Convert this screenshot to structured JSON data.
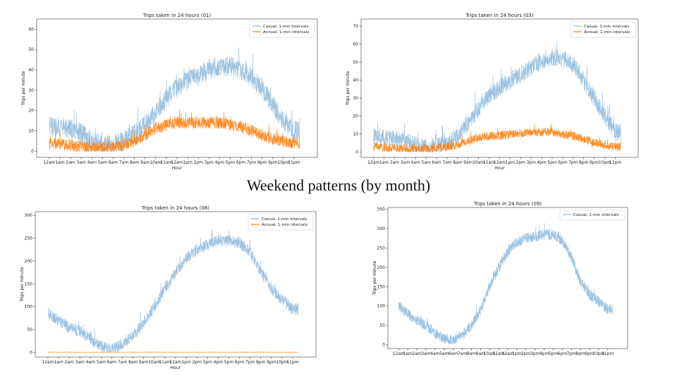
{
  "slide": {
    "title": "Weekend patterns (by month)"
  },
  "colors": {
    "casual": "#8db9dc",
    "annual": "#ff7f0e"
  },
  "chart_data": [
    {
      "id": "c01",
      "type": "line",
      "title": "Trips taken in 24 hours (01)",
      "xlabel": "Hour",
      "ylabel": "Trips per minute",
      "categories": [
        "12am",
        "1am",
        "2am",
        "3am",
        "4am",
        "5am",
        "6am",
        "7am",
        "8am",
        "9am",
        "10am",
        "11am",
        "12am",
        "1pm",
        "2pm",
        "3pm",
        "4pm",
        "5pm",
        "6pm",
        "7pm",
        "8pm",
        "9pm",
        "10pm",
        "11pm"
      ],
      "yticks": [
        0,
        10,
        20,
        30,
        40,
        50,
        60
      ],
      "ylim": [
        -3,
        65
      ],
      "legend_position": "upper right",
      "series": [
        {
          "name": "Casual, 1-min intervals",
          "color_key": "casual",
          "hourly": [
            12,
            12,
            11,
            9,
            5,
            3,
            3,
            5,
            9,
            13,
            19,
            26,
            31,
            35,
            37,
            40,
            41,
            42,
            40,
            36,
            31,
            23,
            15,
            10
          ],
          "noise": 5
        },
        {
          "name": "Annual, 1-min intervals",
          "color_key": "annual",
          "hourly": [
            4,
            3.5,
            3,
            2,
            1.5,
            1.5,
            2,
            3,
            5,
            8,
            11,
            13,
            14,
            14,
            14,
            14,
            14,
            13,
            12,
            10,
            8,
            6,
            5,
            4
          ],
          "noise": 3
        }
      ]
    },
    {
      "id": "c03",
      "type": "line",
      "title": "Trips taken in 24 hours (03)",
      "xlabel": "Hour",
      "ylabel": "Trips per minute",
      "categories": [
        "12am",
        "1am",
        "2am",
        "3am",
        "4am",
        "5am",
        "6am",
        "7am",
        "8am",
        "9am",
        "10am",
        "11am",
        "12am",
        "1pm",
        "2pm",
        "3pm",
        "4pm",
        "5pm",
        "6pm",
        "7pm",
        "8pm",
        "9pm",
        "10pm",
        "11pm"
      ],
      "yticks": [
        0,
        10,
        20,
        30,
        40,
        50,
        60,
        70
      ],
      "ylim": [
        -3,
        74
      ],
      "legend_position": "upper right",
      "series": [
        {
          "name": "Casual, 1-min intervals",
          "color_key": "casual",
          "hourly": [
            9,
            8,
            7,
            6,
            4,
            3,
            3,
            5,
            9,
            16,
            24,
            31,
            36,
            40,
            43,
            47,
            51,
            53,
            52,
            49,
            40,
            30,
            20,
            11
          ],
          "noise": 5
        },
        {
          "name": "Annual, 1-min intervals",
          "color_key": "annual",
          "hourly": [
            3,
            2.5,
            2,
            2,
            1.5,
            1.5,
            2,
            3,
            4,
            6,
            8,
            9,
            9,
            10,
            10,
            11,
            11,
            11,
            10,
            9,
            7,
            5,
            4,
            3
          ],
          "noise": 2.5
        }
      ]
    },
    {
      "id": "c08",
      "type": "line",
      "title": "Trips taken in 24 hours (08)",
      "xlabel": "Hour",
      "ylabel": "Trips per minute",
      "categories": [
        "12am",
        "1am",
        "2am",
        "3am",
        "4am",
        "5am",
        "6am",
        "7am",
        "8am",
        "9am",
        "10am",
        "11am",
        "12am",
        "1pm",
        "2pm",
        "3pm",
        "4pm",
        "5pm",
        "6pm",
        "7pm",
        "8pm",
        "9pm",
        "10pm",
        "11pm"
      ],
      "yticks": [
        0,
        50,
        100,
        150,
        200,
        250,
        300
      ],
      "ylim": [
        -10,
        308
      ],
      "legend_position": "upper right",
      "series": [
        {
          "name": "Casual, 1-min intervals",
          "color_key": "casual",
          "hourly": [
            85,
            70,
            55,
            45,
            30,
            13,
            8,
            18,
            38,
            65,
            100,
            140,
            175,
            205,
            225,
            235,
            245,
            245,
            240,
            220,
            175,
            140,
            115,
            95
          ],
          "noise": 13
        },
        {
          "name": "Annual, 1-min intervals",
          "color_key": "annual",
          "hourly": [
            0.5,
            0.5,
            0.5,
            0.5,
            0.5,
            0.5,
            0.5,
            0.5,
            0.5,
            0.5,
            0.5,
            0.5,
            0.5,
            0.5,
            0.5,
            0.5,
            0.5,
            0.5,
            0.5,
            0.5,
            0.5,
            0.5,
            0.5,
            0.5
          ],
          "noise": 0.3
        }
      ]
    },
    {
      "id": "c09",
      "type": "line",
      "title": "Trips taken in 24 hours (09)",
      "xlabel": "",
      "ylabel": "Trips per minute",
      "categories": [
        "12am",
        "1am",
        "2am",
        "3am",
        "4am",
        "5am",
        "6am",
        "7am",
        "8am",
        "9am",
        "10am",
        "11am",
        "12am",
        "1pm",
        "2pm",
        "3pm",
        "4pm",
        "5pm",
        "6pm",
        "7pm",
        "8pm",
        "9pm",
        "10pm",
        "11pm"
      ],
      "yticks": [
        0,
        50,
        100,
        150,
        200,
        250,
        300,
        350
      ],
      "ylim": [
        -10,
        355
      ],
      "legend_position": "upper right",
      "series": [
        {
          "name": "Casual, 1-min intervals",
          "color_key": "casual",
          "hourly": [
            100,
            80,
            62,
            50,
            30,
            15,
            12,
            25,
            50,
            90,
            150,
            200,
            240,
            265,
            275,
            280,
            285,
            285,
            270,
            225,
            165,
            130,
            110,
            90
          ],
          "noise": 14
        }
      ]
    }
  ]
}
